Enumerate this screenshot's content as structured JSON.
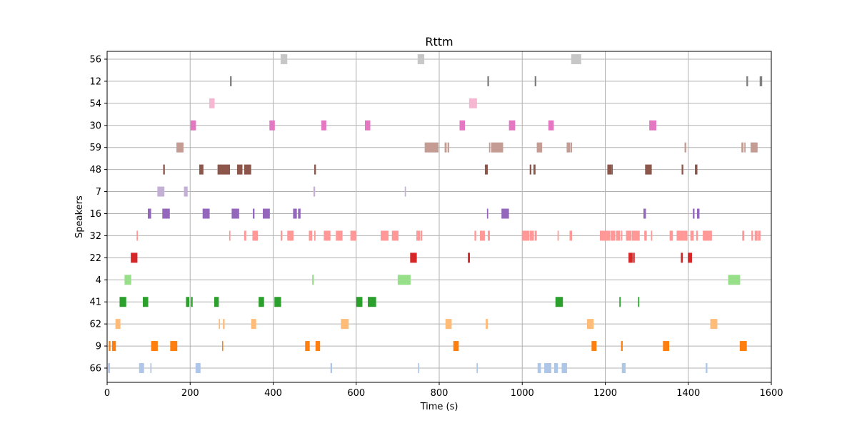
{
  "chart_data": {
    "type": "bar",
    "subtype": "broken-horizontal-bar",
    "title": "Rttm",
    "xlabel": "Time (s)",
    "ylabel": "Speakers",
    "xlim": [
      0,
      1600
    ],
    "xticks": [
      0,
      200,
      400,
      600,
      800,
      1000,
      1200,
      1400,
      1600
    ],
    "grid": true,
    "speakers": [
      "66",
      "9",
      "62",
      "41",
      "4",
      "22",
      "32",
      "16",
      "7",
      "48",
      "59",
      "30",
      "54",
      "12",
      "56"
    ],
    "series": [
      {
        "name": "66",
        "color": "#aec7e8",
        "segments": [
          [
            2,
            7
          ],
          [
            77,
            89
          ],
          [
            104,
            107
          ],
          [
            213,
            225
          ],
          [
            538,
            542
          ],
          [
            749,
            752
          ],
          [
            890,
            893
          ],
          [
            1037,
            1045
          ],
          [
            1053,
            1070
          ],
          [
            1077,
            1086
          ],
          [
            1095,
            1108
          ],
          [
            1240,
            1249
          ],
          [
            1442,
            1446
          ]
        ]
      },
      {
        "name": "9",
        "color": "#ff7f0e",
        "segments": [
          [
            4,
            8
          ],
          [
            12,
            21
          ],
          [
            106,
            122
          ],
          [
            152,
            169
          ],
          [
            277,
            279
          ],
          [
            477,
            488
          ],
          [
            502,
            513
          ],
          [
            834,
            847
          ],
          [
            1167,
            1179
          ],
          [
            1238,
            1242
          ],
          [
            1339,
            1354
          ],
          [
            1524,
            1541
          ]
        ]
      },
      {
        "name": "62",
        "color": "#ffbb78",
        "segments": [
          [
            20,
            32
          ],
          [
            269,
            272
          ],
          [
            279,
            283
          ],
          [
            347,
            359
          ],
          [
            563,
            582
          ],
          [
            815,
            830
          ],
          [
            912,
            917
          ],
          [
            1156,
            1172
          ],
          [
            1453,
            1470
          ]
        ]
      },
      {
        "name": "41",
        "color": "#2ca02c",
        "segments": [
          [
            30,
            46
          ],
          [
            86,
            99
          ],
          [
            190,
            198
          ],
          [
            202,
            206
          ],
          [
            258,
            269
          ],
          [
            365,
            378
          ],
          [
            403,
            419
          ],
          [
            600,
            615
          ],
          [
            628,
            648
          ],
          [
            1080,
            1098
          ],
          [
            1234,
            1237
          ],
          [
            1279,
            1282
          ]
        ]
      },
      {
        "name": "4",
        "color": "#98df8a",
        "segments": [
          [
            42,
            58
          ],
          [
            494,
            498
          ],
          [
            700,
            731
          ],
          [
            1496,
            1525
          ]
        ]
      },
      {
        "name": "22",
        "color": "#d62728",
        "segments": [
          [
            57,
            73
          ],
          [
            730,
            746
          ],
          [
            869,
            874
          ],
          [
            1256,
            1266
          ],
          [
            1267,
            1271
          ],
          [
            1382,
            1387
          ],
          [
            1399,
            1409
          ]
        ]
      },
      {
        "name": "32",
        "color": "#ff9896",
        "segments": [
          [
            71,
            74
          ],
          [
            294,
            297
          ],
          [
            330,
            335
          ],
          [
            350,
            357
          ],
          [
            357,
            363
          ],
          [
            418,
            422
          ],
          [
            434,
            449
          ],
          [
            486,
            494
          ],
          [
            499,
            502
          ],
          [
            522,
            538
          ],
          [
            551,
            567
          ],
          [
            586,
            600
          ],
          [
            659,
            678
          ],
          [
            686,
            702
          ],
          [
            745,
            754
          ],
          [
            755,
            759
          ],
          [
            885,
            889
          ],
          [
            898,
            910
          ],
          [
            917,
            922
          ],
          [
            999,
            1017
          ],
          [
            1018,
            1028
          ],
          [
            1030,
            1035
          ],
          [
            1085,
            1088
          ],
          [
            1114,
            1120
          ],
          [
            1187,
            1212
          ],
          [
            1213,
            1224
          ],
          [
            1226,
            1236
          ],
          [
            1238,
            1241
          ],
          [
            1250,
            1263
          ],
          [
            1264,
            1283
          ],
          [
            1294,
            1300
          ],
          [
            1310,
            1313
          ],
          [
            1355,
            1363
          ],
          [
            1372,
            1390
          ],
          [
            1390,
            1398
          ],
          [
            1405,
            1413
          ],
          [
            1419,
            1423
          ],
          [
            1435,
            1457
          ],
          [
            1530,
            1535
          ],
          [
            1552,
            1556
          ],
          [
            1560,
            1567
          ],
          [
            1568,
            1574
          ]
        ]
      },
      {
        "name": "16",
        "color": "#9467bd",
        "segments": [
          [
            98,
            106
          ],
          [
            133,
            151
          ],
          [
            230,
            247
          ],
          [
            300,
            318
          ],
          [
            351,
            355
          ],
          [
            375,
            392
          ],
          [
            448,
            457
          ],
          [
            460,
            466
          ],
          [
            915,
            918
          ],
          [
            950,
            968
          ],
          [
            1292,
            1298
          ],
          [
            1411,
            1415
          ],
          [
            1421,
            1427
          ]
        ]
      },
      {
        "name": "7",
        "color": "#c5b0d5",
        "segments": [
          [
            121,
            138
          ],
          [
            185,
            194
          ],
          [
            497,
            501
          ],
          [
            717,
            720
          ]
        ]
      },
      {
        "name": "48",
        "color": "#8c564b",
        "segments": [
          [
            135,
            139
          ],
          [
            222,
            232
          ],
          [
            266,
            296
          ],
          [
            313,
            326
          ],
          [
            330,
            347
          ],
          [
            499,
            503
          ],
          [
            910,
            917
          ],
          [
            1018,
            1022
          ],
          [
            1027,
            1032
          ],
          [
            1205,
            1215
          ],
          [
            1215,
            1218
          ],
          [
            1296,
            1312
          ],
          [
            1384,
            1388
          ],
          [
            1416,
            1422
          ]
        ]
      },
      {
        "name": "59",
        "color": "#c49c94",
        "segments": [
          [
            167,
            184
          ],
          [
            765,
            798
          ],
          [
            813,
            818
          ],
          [
            820,
            824
          ],
          [
            920,
            923
          ],
          [
            925,
            954
          ],
          [
            1035,
            1048
          ],
          [
            1107,
            1115
          ],
          [
            1116,
            1120
          ],
          [
            1391,
            1395
          ],
          [
            1528,
            1533
          ],
          [
            1535,
            1538
          ],
          [
            1550,
            1567
          ]
        ]
      },
      {
        "name": "30",
        "color": "#e377c2",
        "segments": [
          [
            201,
            214
          ],
          [
            391,
            404
          ],
          [
            516,
            528
          ],
          [
            621,
            634
          ],
          [
            849,
            862
          ],
          [
            968,
            983
          ],
          [
            1063,
            1076
          ],
          [
            1306,
            1323
          ]
        ]
      },
      {
        "name": "54",
        "color": "#f7b6d2",
        "segments": [
          [
            246,
            259
          ],
          [
            872,
            891
          ]
        ]
      },
      {
        "name": "12",
        "color": "#7f7f7f",
        "segments": [
          [
            296,
            300
          ],
          [
            916,
            920
          ],
          [
            1030,
            1034
          ],
          [
            1540,
            1544
          ],
          [
            1572,
            1578
          ]
        ]
      },
      {
        "name": "56",
        "color": "#c7c7c7",
        "segments": [
          [
            418,
            434
          ],
          [
            748,
            764
          ],
          [
            1118,
            1142
          ]
        ]
      }
    ]
  }
}
